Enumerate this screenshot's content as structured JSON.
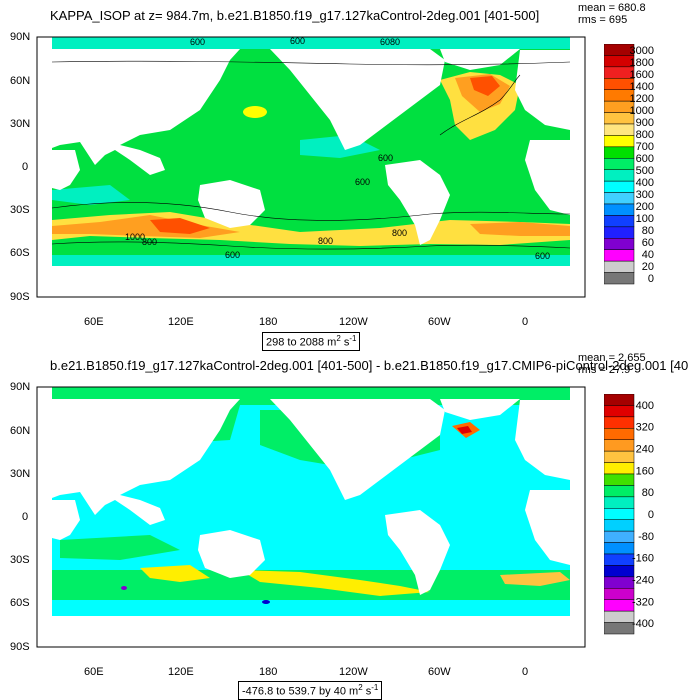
{
  "panels": [
    {
      "title": "KAPPA_ISOP at z= 984.7m, b.e21.B1850.f19_g17.127kaControl-2deg.001 [401-500]",
      "mean": "mean = 680.8",
      "rms": "rms = 695",
      "range": "298 to 2088 m",
      "range_sup": "2",
      "range_unit2": " s",
      "range_sup2": "-1",
      "colorbar": {
        "labels": [
          "3000",
          "1800",
          "1600",
          "1400",
          "1200",
          "1000",
          "900",
          "800",
          "700",
          "600",
          "500",
          "400",
          "300",
          "200",
          "100",
          "80",
          "60",
          "40",
          "20",
          "0"
        ],
        "colors": [
          "#a50000",
          "#d40000",
          "#f02020",
          "#ff5000",
          "#ff7a00",
          "#ff9f20",
          "#ffc340",
          "#ffe680",
          "#ffff00",
          "#00e000",
          "#00ee66",
          "#00f0c0",
          "#00ffff",
          "#40d0ff",
          "#0090ff",
          "#1040ff",
          "#2020ff",
          "#8000d0",
          "#ff00ff",
          "#cccccc",
          "#777777"
        ]
      },
      "contour_labels": [
        "600",
        "600",
        "6080",
        "600",
        "800",
        "1000",
        "800",
        "800",
        "800",
        "600",
        "600"
      ]
    },
    {
      "title": "b.e21.B1850.f19_g17.127kaControl-2deg.001 [401-500] - b.e21.B1850.f19_g17.CMIP6-piControl-2deg.001 [40",
      "mean": "mean = 2.655",
      "rms": "rms = 27.9",
      "range": "-476.8 to 539.7 by 40 m",
      "range_sup": "2",
      "range_unit2": " s",
      "range_sup2": "-1",
      "colorbar": {
        "labels": [
          "400",
          "320",
          "240",
          "160",
          "80",
          "0",
          "-80",
          "-160",
          "-240",
          "-320",
          "-400"
        ],
        "colors": [
          "#a50000",
          "#e00000",
          "#ff3000",
          "#ff6a00",
          "#ff9a20",
          "#ffc340",
          "#ffee00",
          "#40e000",
          "#00ee66",
          "#00f0c0",
          "#00ffff",
          "#00d0ff",
          "#40b0ff",
          "#0090ff",
          "#1040ff",
          "#0000d0",
          "#8000d0",
          "#cc00cc",
          "#ff00ff",
          "#cccccc",
          "#777777"
        ]
      }
    }
  ],
  "axes": {
    "lat_labels": [
      "90N",
      "60N",
      "30N",
      "0",
      "30S",
      "60S",
      "90S"
    ],
    "lon_labels": [
      "60E",
      "120E",
      "180",
      "120W",
      "60W",
      "0"
    ]
  }
}
